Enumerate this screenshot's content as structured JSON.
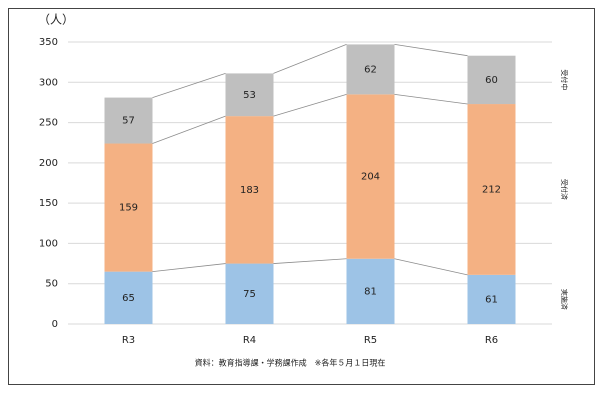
{
  "chart_data": {
    "type": "stacked_bar",
    "y_label": "（人）",
    "note": "資料：教育指導課・学務課作成　※各年５月１日現在",
    "categories": [
      "R3",
      "R4",
      "R5",
      "R6"
    ],
    "series": [
      {
        "name": "実施済",
        "color": "#9dc3e6",
        "values": [
          65,
          75,
          81,
          61
        ]
      },
      {
        "name": "受付済",
        "color": "#f4b183",
        "values": [
          159,
          183,
          204,
          212
        ]
      },
      {
        "name": "受付中",
        "color": "#bfbfbf",
        "values": [
          57,
          53,
          62,
          60
        ]
      }
    ],
    "ylim": [
      0,
      350
    ],
    "yticks": [
      0,
      50,
      100,
      150,
      200,
      250,
      300,
      350
    ],
    "grid": true
  }
}
